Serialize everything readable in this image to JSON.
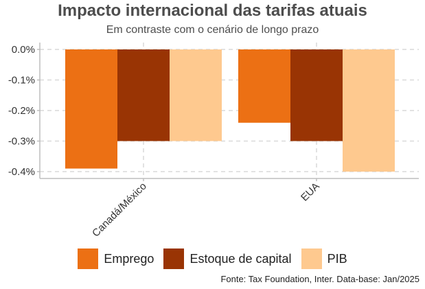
{
  "colors": {
    "emprego": "#ec7014",
    "estoque": "#993404",
    "pib": "#fec98f",
    "grid": "#d9d9d9",
    "axis": "#bdbdbd",
    "text": "#333333"
  },
  "chart_data": {
    "type": "bar",
    "title": "Impacto internacional das tarifas atuais",
    "subtitle": "Em contraste com o cenário de longo prazo",
    "categories": [
      "Canadá/México",
      "EUA"
    ],
    "series": [
      {
        "name": "Emprego",
        "values": [
          -0.39,
          -0.24
        ]
      },
      {
        "name": "Estoque de capital",
        "values": [
          -0.3,
          -0.3
        ]
      },
      {
        "name": "PIB",
        "values": [
          -0.3,
          -0.4
        ]
      }
    ],
    "yticks": [
      0.0,
      -0.1,
      -0.2,
      -0.3,
      -0.4
    ],
    "ytick_labels": [
      "0.0%",
      "-0.1%",
      "-0.2%",
      "-0.3%",
      "-0.4%"
    ],
    "ylim": [
      -0.4,
      0.0
    ],
    "xlabel": "",
    "ylabel": "",
    "grid": true,
    "legend_position": "bottom",
    "source": "Fonte: Tax Foundation, Inter. Data-base: Jan/2025"
  }
}
